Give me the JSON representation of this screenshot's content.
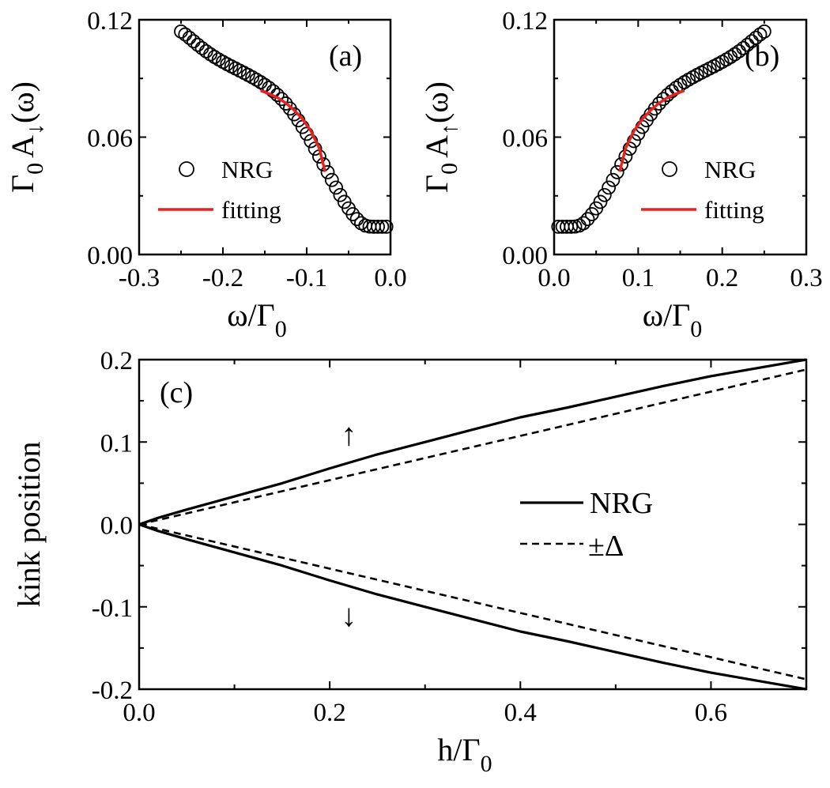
{
  "chart_data": [
    {
      "id": "a",
      "type": "scatter",
      "panel_label": "(a)",
      "xlabel": {
        "main": "ω/Γ",
        "sub": "0"
      },
      "ylabel": {
        "g": "Γ",
        "gsub": "0",
        "a": "A",
        "asub": "↓",
        "tail": "(ω)"
      },
      "xlim": [
        -0.3,
        0.0
      ],
      "ylim": [
        0.0,
        0.12
      ],
      "xticks": [
        "-0.3",
        "-0.2",
        "-0.1",
        "0.0"
      ],
      "xtick_values": [
        -0.3,
        -0.2,
        -0.1,
        0.0
      ],
      "yticks": [
        "0.00",
        "0.06",
        "0.12"
      ],
      "ytick_values": [
        0.0,
        0.06,
        0.12
      ],
      "legend": {
        "position": "lower-left",
        "items": [
          {
            "label": "NRG",
            "marker": "open-circle"
          },
          {
            "label": "fitting",
            "color": "#e8221e"
          }
        ]
      },
      "series": [
        {
          "name": "NRG",
          "marker": "open-circle",
          "x": [
            -0.25,
            -0.245,
            -0.24,
            -0.235,
            -0.23,
            -0.225,
            -0.22,
            -0.215,
            -0.21,
            -0.205,
            -0.2,
            -0.195,
            -0.19,
            -0.185,
            -0.18,
            -0.175,
            -0.17,
            -0.165,
            -0.16,
            -0.155,
            -0.15,
            -0.145,
            -0.14,
            -0.135,
            -0.13,
            -0.125,
            -0.12,
            -0.115,
            -0.11,
            -0.105,
            -0.1,
            -0.095,
            -0.09,
            -0.085,
            -0.08,
            -0.075,
            -0.07,
            -0.065,
            -0.06,
            -0.055,
            -0.05,
            -0.045,
            -0.04,
            -0.035,
            -0.03,
            -0.025,
            -0.02,
            -0.015,
            -0.01,
            -0.005
          ],
          "y": [
            0.114,
            0.1125,
            0.1108,
            0.109,
            0.1072,
            0.1055,
            0.1039,
            0.1024,
            0.101,
            0.0997,
            0.0985,
            0.0973,
            0.0962,
            0.0951,
            0.094,
            0.0929,
            0.0918,
            0.0906,
            0.0894,
            0.0881,
            0.0867,
            0.0852,
            0.0835,
            0.0816,
            0.0795,
            0.0772,
            0.0746,
            0.0717,
            0.0686,
            0.0652,
            0.0617,
            0.058,
            0.0541,
            0.0501,
            0.0461,
            0.0421,
            0.0381,
            0.0342,
            0.0304,
            0.0269,
            0.0236,
            0.0206,
            0.0181,
            0.016,
            0.0148,
            0.0143,
            0.0142,
            0.0142,
            0.0142,
            0.0142
          ]
        },
        {
          "name": "fitting",
          "color": "#e8221e",
          "x": [
            -0.155,
            -0.145,
            -0.135,
            -0.125,
            -0.115,
            -0.105,
            -0.095,
            -0.085,
            -0.078
          ],
          "y": [
            0.0838,
            0.0822,
            0.0802,
            0.0774,
            0.0738,
            0.0693,
            0.0632,
            0.0543,
            0.0423
          ]
        }
      ]
    },
    {
      "id": "b",
      "type": "scatter",
      "panel_label": "(b)",
      "xlabel": {
        "main": "ω/Γ",
        "sub": "0"
      },
      "ylabel": {
        "g": "Γ",
        "gsub": "0",
        "a": "A",
        "asub": "↑",
        "tail": "(ω)"
      },
      "xlim": [
        0.0,
        0.3
      ],
      "ylim": [
        0.0,
        0.12
      ],
      "xticks": [
        "0.0",
        "0.1",
        "0.2",
        "0.3"
      ],
      "xtick_values": [
        0.0,
        0.1,
        0.2,
        0.3
      ],
      "yticks": [
        "0.00",
        "0.06",
        "0.12"
      ],
      "ytick_values": [
        0.0,
        0.06,
        0.12
      ],
      "legend": {
        "position": "lower-right",
        "items": [
          {
            "label": "NRG",
            "marker": "open-circle"
          },
          {
            "label": "fitting",
            "color": "#e8221e"
          }
        ]
      },
      "series": [
        {
          "name": "NRG",
          "marker": "open-circle",
          "x": [
            0.005,
            0.01,
            0.015,
            0.02,
            0.025,
            0.03,
            0.035,
            0.04,
            0.045,
            0.05,
            0.055,
            0.06,
            0.065,
            0.07,
            0.075,
            0.08,
            0.085,
            0.09,
            0.095,
            0.1,
            0.105,
            0.11,
            0.115,
            0.12,
            0.125,
            0.13,
            0.135,
            0.14,
            0.145,
            0.15,
            0.155,
            0.16,
            0.165,
            0.17,
            0.175,
            0.18,
            0.185,
            0.19,
            0.195,
            0.2,
            0.205,
            0.21,
            0.215,
            0.22,
            0.225,
            0.23,
            0.235,
            0.24,
            0.245,
            0.25
          ],
          "y": [
            0.0142,
            0.0142,
            0.0142,
            0.0142,
            0.0143,
            0.0148,
            0.016,
            0.0181,
            0.0206,
            0.0236,
            0.0269,
            0.0304,
            0.0342,
            0.0381,
            0.0421,
            0.0461,
            0.0501,
            0.0541,
            0.058,
            0.0617,
            0.0652,
            0.0686,
            0.0717,
            0.0746,
            0.0772,
            0.0795,
            0.0816,
            0.0835,
            0.0852,
            0.0867,
            0.0881,
            0.0894,
            0.0906,
            0.0918,
            0.0929,
            0.094,
            0.0951,
            0.0962,
            0.0973,
            0.0985,
            0.0997,
            0.101,
            0.1024,
            0.1039,
            0.1055,
            0.1072,
            0.109,
            0.1108,
            0.1125,
            0.114
          ]
        },
        {
          "name": "fitting",
          "color": "#e8221e",
          "x": [
            0.078,
            0.085,
            0.095,
            0.105,
            0.115,
            0.125,
            0.135,
            0.145,
            0.155
          ],
          "y": [
            0.0423,
            0.0543,
            0.0632,
            0.0693,
            0.0738,
            0.0774,
            0.0802,
            0.0822,
            0.0838
          ]
        }
      ]
    },
    {
      "id": "c",
      "type": "line",
      "panel_label": "(c)",
      "xlabel": {
        "main": "h/Γ",
        "sub": "0"
      },
      "ylabel": {
        "text": "kink position"
      },
      "xlim": [
        0.0,
        0.7
      ],
      "ylim": [
        -0.2,
        0.2
      ],
      "xticks": [
        "0.0",
        "0.2",
        "0.4",
        "0.6"
      ],
      "xtick_values": [
        0.0,
        0.2,
        0.4,
        0.6
      ],
      "yticks": [
        "-0.2",
        "-0.1",
        "0.0",
        "0.1",
        "0.2"
      ],
      "ytick_values": [
        -0.2,
        -0.1,
        0.0,
        0.1,
        0.2
      ],
      "annotations": [
        {
          "text": "↑",
          "x": 0.22,
          "y": 0.11
        },
        {
          "text": "↓",
          "x": 0.22,
          "y": -0.11
        }
      ],
      "legend": {
        "position": "right",
        "items": [
          {
            "label": "NRG",
            "style": "solid"
          },
          {
            "label": "±Δ",
            "style": "dashed"
          }
        ]
      },
      "series": [
        {
          "name": "NRG",
          "style": "solid",
          "x": [
            0.0,
            0.02,
            0.05,
            0.1,
            0.15,
            0.2,
            0.25,
            0.3,
            0.35,
            0.4,
            0.45,
            0.5,
            0.55,
            0.6,
            0.65,
            0.7
          ],
          "y": [
            0.0,
            0.008,
            0.018,
            0.034,
            0.05,
            0.068,
            0.085,
            0.1,
            0.115,
            0.13,
            0.142,
            0.155,
            0.168,
            0.18,
            0.19,
            0.2
          ]
        },
        {
          "name": "NRG",
          "style": "solid",
          "x": [
            0.0,
            0.02,
            0.05,
            0.1,
            0.15,
            0.2,
            0.25,
            0.3,
            0.35,
            0.4,
            0.45,
            0.5,
            0.55,
            0.6,
            0.65,
            0.7
          ],
          "y": [
            0.0,
            -0.008,
            -0.018,
            -0.034,
            -0.05,
            -0.068,
            -0.085,
            -0.1,
            -0.115,
            -0.13,
            -0.142,
            -0.155,
            -0.168,
            -0.18,
            -0.19,
            -0.2
          ]
        },
        {
          "name": "±Δ",
          "style": "dashed",
          "x": [
            0.0,
            0.7
          ],
          "y": [
            0.0,
            0.188
          ]
        },
        {
          "name": "±Δ",
          "style": "dashed",
          "x": [
            0.0,
            0.7
          ],
          "y": [
            0.0,
            -0.188
          ]
        }
      ]
    }
  ]
}
